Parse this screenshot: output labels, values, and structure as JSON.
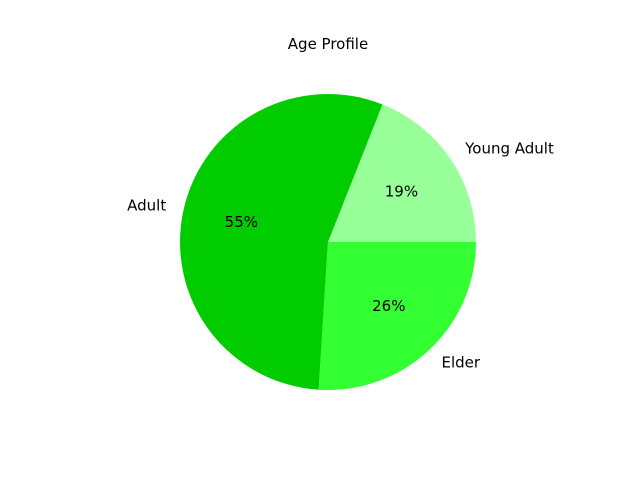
{
  "chart_data": {
    "type": "pie",
    "title": "Age Profile",
    "slices": [
      {
        "label": "Young Adult",
        "value": 19,
        "pct_label": "19%",
        "color": "#99ff99"
      },
      {
        "label": "Adult",
        "value": 55,
        "pct_label": "55%",
        "color": "#00cc00"
      },
      {
        "label": "Elder",
        "value": 26,
        "pct_label": "26%",
        "color": "#33ff33"
      }
    ],
    "start_angle": 0,
    "direction": "counterclockwise",
    "legend": "none"
  }
}
